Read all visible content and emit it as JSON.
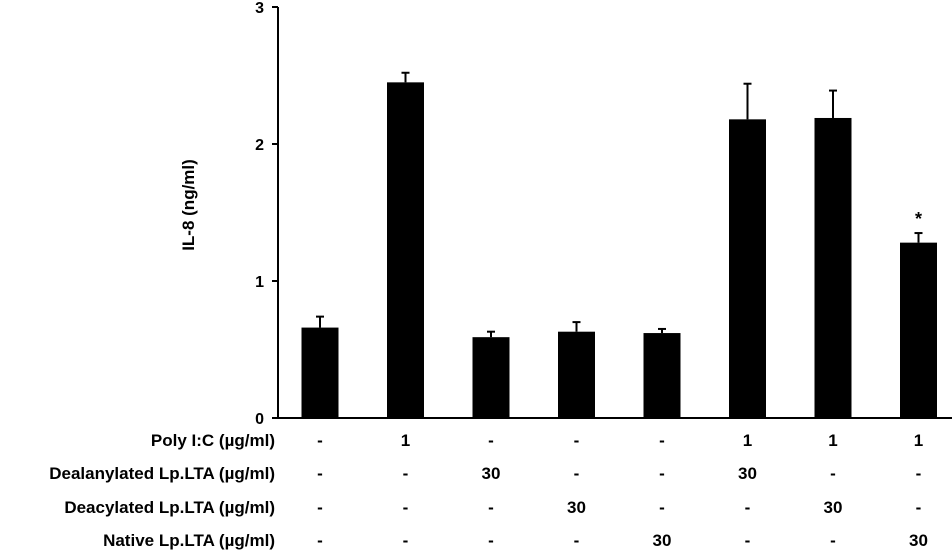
{
  "chart_data": {
    "type": "bar",
    "ylabel": "IL-8 (ng/ml)",
    "ylim": [
      0,
      3
    ],
    "yticks": [
      "0",
      "1",
      "2",
      "3"
    ],
    "values": [
      0.66,
      2.45,
      0.59,
      0.63,
      0.62,
      2.18,
      2.19,
      1.28
    ],
    "errors": [
      0.08,
      0.07,
      0.04,
      0.07,
      0.03,
      0.26,
      0.2,
      0.07
    ],
    "annotations": [
      "",
      "",
      "",
      "",
      "",
      "",
      "",
      "*"
    ],
    "bar_color": "#000000",
    "grid": false,
    "treatment_table": [
      {
        "label": "Poly I:C (µg/ml)",
        "cells": [
          "-",
          "1",
          "-",
          "-",
          "-",
          "1",
          "1",
          "1"
        ]
      },
      {
        "label": "Dealanylated Lp.LTA (µg/ml)",
        "cells": [
          "-",
          "-",
          "30",
          "-",
          "-",
          "30",
          "-",
          "-"
        ]
      },
      {
        "label": "Deacylated Lp.LTA (µg/ml)",
        "cells": [
          "-",
          "-",
          "-",
          "30",
          "-",
          "-",
          "30",
          "-"
        ]
      },
      {
        "label": "Native Lp.LTA (µg/ml)",
        "cells": [
          "-",
          "-",
          "-",
          "-",
          "30",
          "-",
          "-",
          "30"
        ]
      }
    ]
  }
}
